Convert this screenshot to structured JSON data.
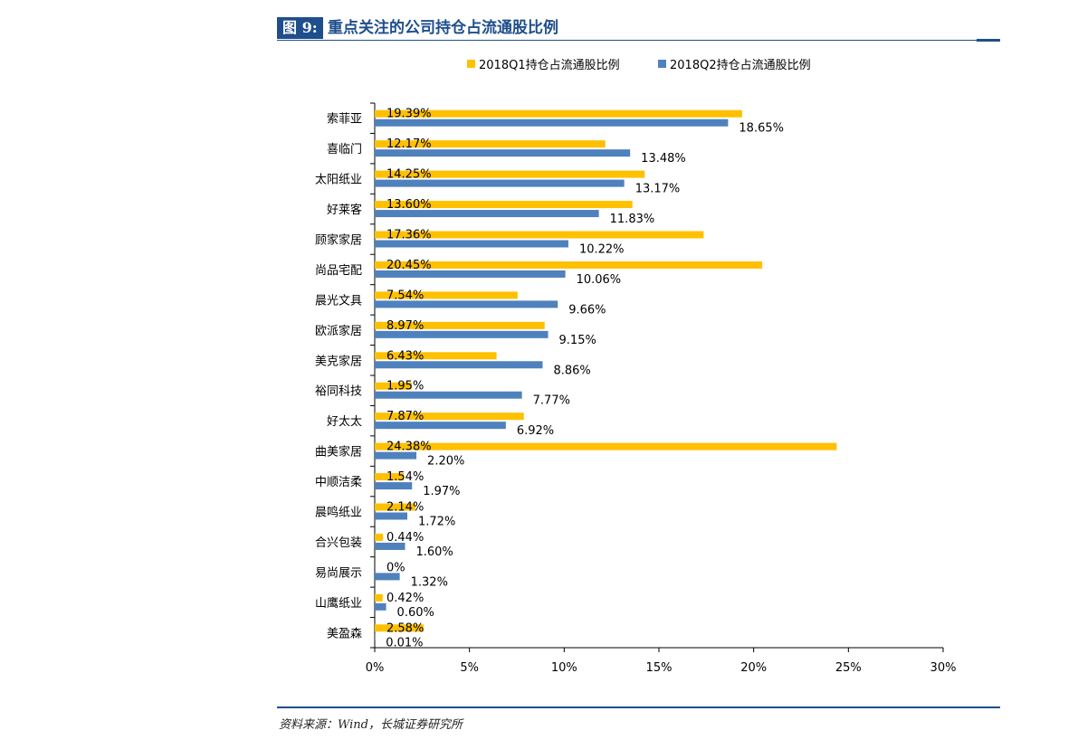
{
  "figure": {
    "label": "图 9:",
    "title": "重点关注的公司持仓占流通股比例",
    "source": "资料来源：Wind，长城证券研究所"
  },
  "colors": {
    "accent": "#1f4e8c",
    "series1": "#ffc000",
    "series2": "#4f81bd"
  },
  "chart_data": {
    "type": "bar",
    "orientation": "horizontal",
    "categories": [
      "索菲亚",
      "喜临门",
      "太阳纸业",
      "好莱客",
      "顾家家居",
      "尚品宅配",
      "晨光文具",
      "欧派家居",
      "美克家居",
      "裕同科技",
      "好太太",
      "曲美家居",
      "中顺洁柔",
      "晨鸣纸业",
      "合兴包装",
      "易尚展示",
      "山鹰纸业",
      "美盈森"
    ],
    "series": [
      {
        "name": "2018Q1持仓占流通股比例",
        "values": [
          19.39,
          12.17,
          14.25,
          13.6,
          17.36,
          20.45,
          7.54,
          8.97,
          6.43,
          1.95,
          7.87,
          24.38,
          1.54,
          2.14,
          0.44,
          0,
          0.42,
          2.58
        ],
        "labels": [
          "19.39%",
          "12.17%",
          "14.25%",
          "13.60%",
          "17.36%",
          "20.45%",
          "7.54%",
          "8.97%",
          "6.43%",
          "1.95%",
          "7.87%",
          "24.38%",
          "1.54%",
          "2.14%",
          "0.44%",
          "0%",
          "0.42%",
          "2.58%"
        ]
      },
      {
        "name": "2018Q2持仓占流通股比例",
        "values": [
          18.65,
          13.48,
          13.17,
          11.83,
          10.22,
          10.06,
          9.66,
          9.15,
          8.86,
          7.77,
          6.92,
          2.2,
          1.97,
          1.72,
          1.6,
          1.32,
          0.6,
          0.01
        ],
        "labels": [
          "18.65%",
          "13.48%",
          "13.17%",
          "11.83%",
          "10.22%",
          "10.06%",
          "9.66%",
          "9.15%",
          "8.86%",
          "7.77%",
          "6.92%",
          "2.20%",
          "1.97%",
          "1.72%",
          "1.60%",
          "1.32%",
          "0.60%",
          "0.01%"
        ]
      }
    ],
    "xlim": [
      0,
      30
    ],
    "xticks": [
      0,
      5,
      10,
      15,
      20,
      25,
      30
    ],
    "xtick_labels": [
      "0%",
      "5%",
      "10%",
      "15%",
      "20%",
      "25%",
      "30%"
    ],
    "grid": false,
    "legend_position": "top"
  }
}
